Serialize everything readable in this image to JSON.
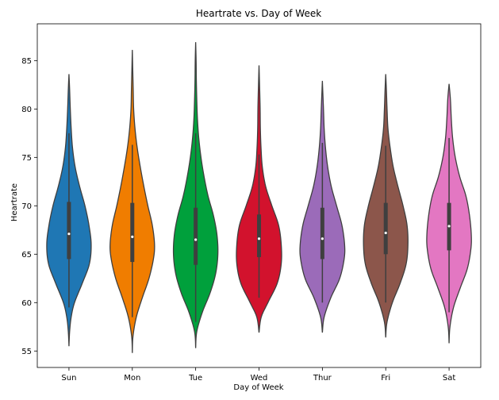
{
  "chart_data": {
    "type": "violin",
    "title": "Heartrate vs. Day of Week",
    "xlabel": "Day of Week",
    "ylabel": "Heartrate",
    "ylim": [
      53.3,
      88.8
    ],
    "yticks": [
      55,
      60,
      65,
      70,
      75,
      80,
      85
    ],
    "grid": false,
    "categories": [
      "Sun",
      "Mon",
      "Tue",
      "Wed",
      "Thur",
      "Fri",
      "Sat"
    ],
    "colors": [
      "#1f77b4",
      "#f07d00",
      "#00a03c",
      "#d2122d",
      "#9b6bb9",
      "#8c564b",
      "#e377c2"
    ],
    "series": [
      {
        "category": "Sun",
        "min": 55.5,
        "max": 83.6,
        "q1": 64.5,
        "median": 67.1,
        "q3": 70.4,
        "whisker_low": 59.5,
        "whisker_high": 77.5,
        "profile": [
          [
            55.5,
            0.0
          ],
          [
            57,
            0.03
          ],
          [
            58.5,
            0.1
          ],
          [
            60,
            0.25
          ],
          [
            62,
            0.6
          ],
          [
            64,
            0.92
          ],
          [
            66,
            1.0
          ],
          [
            68,
            0.9
          ],
          [
            70,
            0.72
          ],
          [
            72,
            0.48
          ],
          [
            74,
            0.28
          ],
          [
            76,
            0.16
          ],
          [
            78,
            0.1
          ],
          [
            80,
            0.06
          ],
          [
            82,
            0.03
          ],
          [
            83.6,
            0.0
          ]
        ]
      },
      {
        "category": "Mon",
        "min": 54.8,
        "max": 86.1,
        "q1": 64.2,
        "median": 66.8,
        "q3": 70.3,
        "whisker_low": 58.5,
        "whisker_high": 76.3,
        "profile": [
          [
            54.8,
            0.0
          ],
          [
            56.5,
            0.03
          ],
          [
            58.5,
            0.18
          ],
          [
            60.5,
            0.45
          ],
          [
            62.5,
            0.75
          ],
          [
            64.5,
            0.95
          ],
          [
            66,
            1.0
          ],
          [
            68,
            0.9
          ],
          [
            70,
            0.7
          ],
          [
            72,
            0.52
          ],
          [
            74,
            0.36
          ],
          [
            76,
            0.22
          ],
          [
            78,
            0.12
          ],
          [
            80,
            0.06
          ],
          [
            82,
            0.04
          ],
          [
            84,
            0.02
          ],
          [
            86.1,
            0.0
          ]
        ]
      },
      {
        "category": "Tue",
        "min": 55.3,
        "max": 86.9,
        "q1": 63.9,
        "median": 66.5,
        "q3": 69.8,
        "whisker_low": 58.0,
        "whisker_high": 77.5,
        "profile": [
          [
            55.3,
            0.0
          ],
          [
            57,
            0.05
          ],
          [
            59,
            0.3
          ],
          [
            61,
            0.65
          ],
          [
            63,
            0.9
          ],
          [
            65,
            1.0
          ],
          [
            67,
            0.96
          ],
          [
            69,
            0.8
          ],
          [
            71,
            0.56
          ],
          [
            73,
            0.38
          ],
          [
            75,
            0.24
          ],
          [
            77,
            0.14
          ],
          [
            79,
            0.08
          ],
          [
            81,
            0.05
          ],
          [
            83,
            0.03
          ],
          [
            85,
            0.02
          ],
          [
            86.9,
            0.0
          ]
        ]
      },
      {
        "category": "Wed",
        "min": 56.9,
        "max": 84.5,
        "q1": 64.7,
        "median": 66.6,
        "q3": 69.1,
        "whisker_low": 60.5,
        "whisker_high": 75.3,
        "profile": [
          [
            56.9,
            0.0
          ],
          [
            58.5,
            0.1
          ],
          [
            60,
            0.4
          ],
          [
            62,
            0.82
          ],
          [
            64,
            1.0
          ],
          [
            66,
            1.0
          ],
          [
            68,
            0.88
          ],
          [
            70,
            0.58
          ],
          [
            72,
            0.3
          ],
          [
            74,
            0.15
          ],
          [
            76,
            0.09
          ],
          [
            78,
            0.06
          ],
          [
            80,
            0.05
          ],
          [
            82,
            0.03
          ],
          [
            84.5,
            0.0
          ]
        ]
      },
      {
        "category": "Thur",
        "min": 56.9,
        "max": 82.9,
        "q1": 64.5,
        "median": 66.6,
        "q3": 69.8,
        "whisker_low": 60.0,
        "whisker_high": 76.5,
        "profile": [
          [
            56.9,
            0.0
          ],
          [
            58.5,
            0.08
          ],
          [
            60.5,
            0.38
          ],
          [
            62.5,
            0.78
          ],
          [
            64.5,
            0.98
          ],
          [
            66,
            1.0
          ],
          [
            68,
            0.88
          ],
          [
            70,
            0.64
          ],
          [
            72,
            0.4
          ],
          [
            74,
            0.24
          ],
          [
            76,
            0.14
          ],
          [
            78,
            0.08
          ],
          [
            80,
            0.05
          ],
          [
            82.9,
            0.0
          ]
        ]
      },
      {
        "category": "Fri",
        "min": 56.4,
        "max": 83.6,
        "q1": 65.0,
        "median": 67.2,
        "q3": 70.3,
        "whisker_low": 60.0,
        "whisker_high": 76.2,
        "profile": [
          [
            56.4,
            0.0
          ],
          [
            58,
            0.06
          ],
          [
            60,
            0.3
          ],
          [
            62,
            0.65
          ],
          [
            64,
            0.92
          ],
          [
            66,
            1.0
          ],
          [
            68,
            0.96
          ],
          [
            70,
            0.78
          ],
          [
            72,
            0.55
          ],
          [
            74,
            0.34
          ],
          [
            76,
            0.2
          ],
          [
            78,
            0.1
          ],
          [
            80,
            0.06
          ],
          [
            82,
            0.03
          ],
          [
            83.6,
            0.0
          ]
        ]
      },
      {
        "category": "Sat",
        "min": 55.8,
        "max": 82.6,
        "q1": 65.4,
        "median": 67.9,
        "q3": 70.3,
        "whisker_low": 59.0,
        "whisker_high": 77.0,
        "profile": [
          [
            55.8,
            0.0
          ],
          [
            57.5,
            0.04
          ],
          [
            59.5,
            0.2
          ],
          [
            61.5,
            0.5
          ],
          [
            63.5,
            0.82
          ],
          [
            65.5,
            0.98
          ],
          [
            67,
            1.0
          ],
          [
            69,
            0.92
          ],
          [
            71,
            0.76
          ],
          [
            73,
            0.48
          ],
          [
            75,
            0.28
          ],
          [
            77,
            0.16
          ],
          [
            79,
            0.1
          ],
          [
            81,
            0.06
          ],
          [
            82.6,
            0.0
          ]
        ]
      }
    ]
  }
}
